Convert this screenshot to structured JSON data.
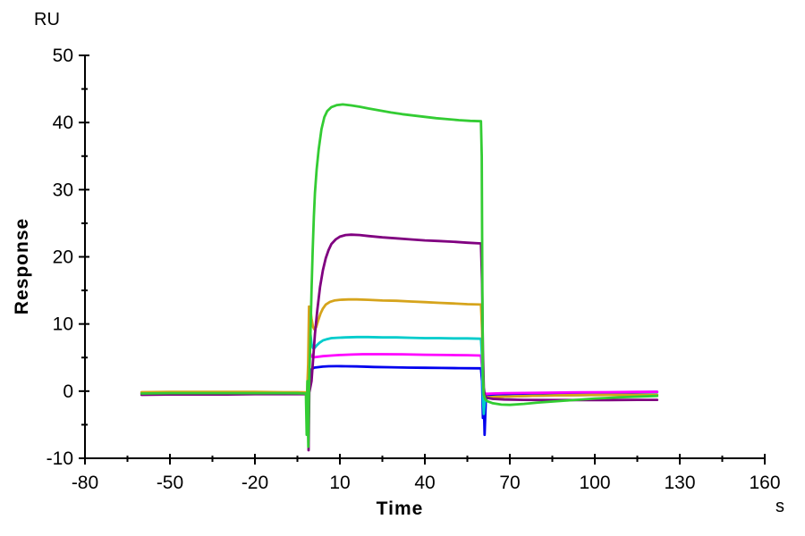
{
  "page": {
    "background": "#ffffff",
    "axis_color": "#000000"
  },
  "chart_data": {
    "type": "line",
    "title": "",
    "xlabel": "Time",
    "xlabel_unit": "s",
    "ylabel": "Response",
    "ylabel_unit": "RU",
    "xlim": [
      -80,
      160
    ],
    "ylim": [
      -10,
      50
    ],
    "x_major_ticks": [
      -80,
      -50,
      -20,
      10,
      40,
      70,
      100,
      130,
      160
    ],
    "x_minor_ticks": [
      -65,
      -35,
      -5,
      25,
      55,
      85,
      115,
      145
    ],
    "y_major_ticks": [
      -10,
      0,
      10,
      20,
      30,
      40,
      50
    ],
    "y_minor_ticks": [
      -5,
      5,
      15,
      25,
      35,
      45
    ],
    "grid": false,
    "legend": "none",
    "phases": {
      "association_start_s": 0,
      "dissociation_start_s": 60,
      "trace_start_s": -60,
      "trace_end_s": 122
    },
    "series": [
      {
        "name": "blue",
        "color": "#0000EE",
        "plateau_ru": 3.6,
        "points": [
          [
            -60,
            -0.3
          ],
          [
            -50,
            -0.3
          ],
          [
            -40,
            -0.3
          ],
          [
            -30,
            -0.3
          ],
          [
            -20,
            -0.3
          ],
          [
            -10,
            -0.3
          ],
          [
            -5,
            -0.32
          ],
          [
            -1.4,
            -0.3
          ],
          [
            -1,
            0.8
          ],
          [
            -0.6,
            2.6
          ],
          [
            -0.2,
            3.1
          ],
          [
            0.3,
            3.35
          ],
          [
            1,
            3.5
          ],
          [
            2,
            3.55
          ],
          [
            4,
            3.65
          ],
          [
            6,
            3.7
          ],
          [
            9,
            3.72
          ],
          [
            12,
            3.7
          ],
          [
            16,
            3.68
          ],
          [
            22,
            3.6
          ],
          [
            28,
            3.55
          ],
          [
            34,
            3.5
          ],
          [
            40,
            3.48
          ],
          [
            46,
            3.45
          ],
          [
            52,
            3.42
          ],
          [
            59.8,
            3.4
          ],
          [
            60.2,
            1.5
          ],
          [
            60.5,
            -4
          ],
          [
            60.8,
            -1.2
          ],
          [
            61.1,
            -6.5
          ],
          [
            61.5,
            -1.5
          ],
          [
            62,
            -0.7
          ],
          [
            63,
            -0.55
          ],
          [
            65,
            -0.5
          ],
          [
            68,
            -0.45
          ],
          [
            72,
            -0.42
          ],
          [
            80,
            -0.38
          ],
          [
            90,
            -0.32
          ],
          [
            100,
            -0.25
          ],
          [
            110,
            -0.18
          ],
          [
            122,
            -0.12
          ]
        ]
      },
      {
        "name": "magenta",
        "color": "#FF00FF",
        "plateau_ru": 5.5,
        "points": [
          [
            -60,
            -0.33
          ],
          [
            -50,
            -0.3
          ],
          [
            -40,
            -0.3
          ],
          [
            -30,
            -0.3
          ],
          [
            -20,
            -0.3
          ],
          [
            -10,
            -0.3
          ],
          [
            -5,
            -0.33
          ],
          [
            -1.4,
            -0.3
          ],
          [
            -1,
            2
          ],
          [
            -0.7,
            5.9
          ],
          [
            -0.3,
            5.4
          ],
          [
            0,
            5.15
          ],
          [
            1,
            5.05
          ],
          [
            2,
            5.1
          ],
          [
            4,
            5.2
          ],
          [
            7,
            5.3
          ],
          [
            10,
            5.38
          ],
          [
            14,
            5.45
          ],
          [
            18,
            5.5
          ],
          [
            25,
            5.5
          ],
          [
            32,
            5.48
          ],
          [
            40,
            5.42
          ],
          [
            48,
            5.38
          ],
          [
            55,
            5.35
          ],
          [
            59.8,
            5.3
          ],
          [
            60.2,
            3.5
          ],
          [
            60.5,
            0.5
          ],
          [
            60.9,
            -0.35
          ],
          [
            62,
            -0.4
          ],
          [
            64,
            -0.35
          ],
          [
            68,
            -0.3
          ],
          [
            75,
            -0.27
          ],
          [
            85,
            -0.22
          ],
          [
            95,
            -0.18
          ],
          [
            105,
            -0.15
          ],
          [
            115,
            -0.12
          ],
          [
            122,
            -0.1
          ]
        ]
      },
      {
        "name": "cyan",
        "color": "#00CCCC",
        "plateau_ru": 8.0,
        "points": [
          [
            -60,
            -0.28
          ],
          [
            -50,
            -0.25
          ],
          [
            -40,
            -0.25
          ],
          [
            -30,
            -0.25
          ],
          [
            -20,
            -0.25
          ],
          [
            -10,
            -0.28
          ],
          [
            -5,
            -0.28
          ],
          [
            -1.5,
            -0.3
          ],
          [
            -1.1,
            3
          ],
          [
            -0.8,
            10.4
          ],
          [
            -0.4,
            8.5
          ],
          [
            0,
            7
          ],
          [
            0.5,
            6.4
          ],
          [
            1,
            6.4
          ],
          [
            1.8,
            6.8
          ],
          [
            2.8,
            7.2
          ],
          [
            4,
            7.55
          ],
          [
            5.5,
            7.75
          ],
          [
            7,
            7.9
          ],
          [
            9,
            7.95
          ],
          [
            12,
            8
          ],
          [
            16,
            8.05
          ],
          [
            20,
            8.05
          ],
          [
            25,
            8
          ],
          [
            30,
            8
          ],
          [
            35,
            7.95
          ],
          [
            40,
            7.9
          ],
          [
            45,
            7.9
          ],
          [
            50,
            7.85
          ],
          [
            55,
            7.85
          ],
          [
            59.8,
            7.8
          ],
          [
            60.2,
            5
          ],
          [
            60.5,
            -1
          ],
          [
            60.8,
            -3.4
          ],
          [
            61.2,
            -1.3
          ],
          [
            61.8,
            -1
          ],
          [
            63,
            -0.9
          ],
          [
            66,
            -0.85
          ],
          [
            70,
            -0.8
          ],
          [
            78,
            -0.7
          ],
          [
            88,
            -0.62
          ],
          [
            98,
            -0.58
          ],
          [
            110,
            -0.55
          ],
          [
            122,
            -0.52
          ]
        ]
      },
      {
        "name": "gold",
        "color": "#D6A41C",
        "plateau_ru": 13.6,
        "points": [
          [
            -60,
            -0.15
          ],
          [
            -50,
            -0.12
          ],
          [
            -40,
            -0.12
          ],
          [
            -30,
            -0.12
          ],
          [
            -20,
            -0.12
          ],
          [
            -10,
            -0.15
          ],
          [
            -5,
            -0.15
          ],
          [
            -1.6,
            -0.2
          ],
          [
            -1.2,
            4
          ],
          [
            -0.9,
            12.6
          ],
          [
            -0.4,
            12.2
          ],
          [
            0,
            10.8
          ],
          [
            0.5,
            9.6
          ],
          [
            1,
            9.2
          ],
          [
            1.6,
            9.5
          ],
          [
            2.4,
            10.6
          ],
          [
            3.2,
            11.6
          ],
          [
            4,
            12.3
          ],
          [
            5,
            12.9
          ],
          [
            6.5,
            13.3
          ],
          [
            8,
            13.5
          ],
          [
            10,
            13.6
          ],
          [
            13,
            13.65
          ],
          [
            16,
            13.65
          ],
          [
            20,
            13.6
          ],
          [
            25,
            13.5
          ],
          [
            30,
            13.45
          ],
          [
            35,
            13.35
          ],
          [
            40,
            13.25
          ],
          [
            45,
            13.15
          ],
          [
            50,
            13.05
          ],
          [
            55,
            12.95
          ],
          [
            59.8,
            12.9
          ],
          [
            60.2,
            9
          ],
          [
            60.5,
            3
          ],
          [
            60.8,
            -0.3
          ],
          [
            61.3,
            -0.8
          ],
          [
            62.5,
            -0.9
          ],
          [
            65,
            -0.85
          ],
          [
            70,
            -0.8
          ],
          [
            78,
            -0.7
          ],
          [
            88,
            -0.62
          ],
          [
            98,
            -0.58
          ],
          [
            110,
            -0.55
          ],
          [
            122,
            -0.55
          ]
        ]
      },
      {
        "name": "purple",
        "color": "#800080",
        "plateau_ru": 23.3,
        "points": [
          [
            -60,
            -0.55
          ],
          [
            -50,
            -0.5
          ],
          [
            -40,
            -0.5
          ],
          [
            -30,
            -0.5
          ],
          [
            -20,
            -0.45
          ],
          [
            -10,
            -0.45
          ],
          [
            -5,
            -0.45
          ],
          [
            -1.5,
            -0.45
          ],
          [
            -1.3,
            -0.5
          ],
          [
            -1.05,
            -8.8
          ],
          [
            -0.8,
            -0.2
          ],
          [
            0,
            1.5
          ],
          [
            0.6,
            5
          ],
          [
            1.2,
            8.5
          ],
          [
            2,
            12
          ],
          [
            3,
            15.5
          ],
          [
            4,
            18
          ],
          [
            5,
            19.8
          ],
          [
            6,
            21
          ],
          [
            7,
            21.9
          ],
          [
            8.5,
            22.6
          ],
          [
            10,
            23
          ],
          [
            12,
            23.25
          ],
          [
            14,
            23.3
          ],
          [
            17,
            23.25
          ],
          [
            20,
            23.1
          ],
          [
            25,
            22.9
          ],
          [
            30,
            22.75
          ],
          [
            35,
            22.6
          ],
          [
            40,
            22.45
          ],
          [
            45,
            22.35
          ],
          [
            50,
            22.25
          ],
          [
            55,
            22.1
          ],
          [
            59.8,
            22
          ],
          [
            60.2,
            16
          ],
          [
            60.5,
            6
          ],
          [
            60.8,
            0.5
          ],
          [
            61.2,
            -0.7
          ],
          [
            62,
            -1
          ],
          [
            64,
            -1.15
          ],
          [
            68,
            -1.25
          ],
          [
            75,
            -1.3
          ],
          [
            85,
            -1.32
          ],
          [
            95,
            -1.33
          ],
          [
            105,
            -1.32
          ],
          [
            115,
            -1.3
          ],
          [
            122,
            -1.3
          ]
        ]
      },
      {
        "name": "green",
        "color": "#33CC33",
        "plateau_ru": 42.7,
        "points": [
          [
            -60,
            -0.35
          ],
          [
            -50,
            -0.3
          ],
          [
            -40,
            -0.3
          ],
          [
            -30,
            -0.3
          ],
          [
            -20,
            -0.3
          ],
          [
            -10,
            -0.3
          ],
          [
            -5,
            -0.32
          ],
          [
            -2,
            -0.35
          ],
          [
            -1.7,
            -6.5
          ],
          [
            -1.45,
            1.5
          ],
          [
            -1.15,
            -8.3
          ],
          [
            -0.9,
            0
          ],
          [
            -0.6,
            5
          ],
          [
            -0.3,
            10
          ],
          [
            0,
            15
          ],
          [
            0.4,
            21
          ],
          [
            0.8,
            26
          ],
          [
            1.2,
            29.5
          ],
          [
            1.8,
            33
          ],
          [
            2.5,
            36
          ],
          [
            3.5,
            39
          ],
          [
            4.5,
            40.8
          ],
          [
            5.5,
            41.7
          ],
          [
            7,
            42.3
          ],
          [
            9,
            42.6
          ],
          [
            11,
            42.7
          ],
          [
            14,
            42.55
          ],
          [
            17,
            42.35
          ],
          [
            20,
            42.1
          ],
          [
            24,
            41.8
          ],
          [
            28,
            41.5
          ],
          [
            32,
            41.25
          ],
          [
            36,
            41.05
          ],
          [
            40,
            40.85
          ],
          [
            44,
            40.65
          ],
          [
            48,
            40.5
          ],
          [
            52,
            40.35
          ],
          [
            56,
            40.25
          ],
          [
            59.8,
            40.2
          ],
          [
            60.1,
            35
          ],
          [
            60.3,
            15
          ],
          [
            60.5,
            3
          ],
          [
            60.8,
            -0.5
          ],
          [
            61.3,
            -1.2
          ],
          [
            62,
            -1.5
          ],
          [
            64,
            -1.8
          ],
          [
            67,
            -2
          ],
          [
            70,
            -2.05
          ],
          [
            75,
            -1.9
          ],
          [
            80,
            -1.7
          ],
          [
            90,
            -1.4
          ],
          [
            100,
            -1.1
          ],
          [
            110,
            -0.9
          ],
          [
            122,
            -0.72
          ]
        ]
      }
    ]
  }
}
